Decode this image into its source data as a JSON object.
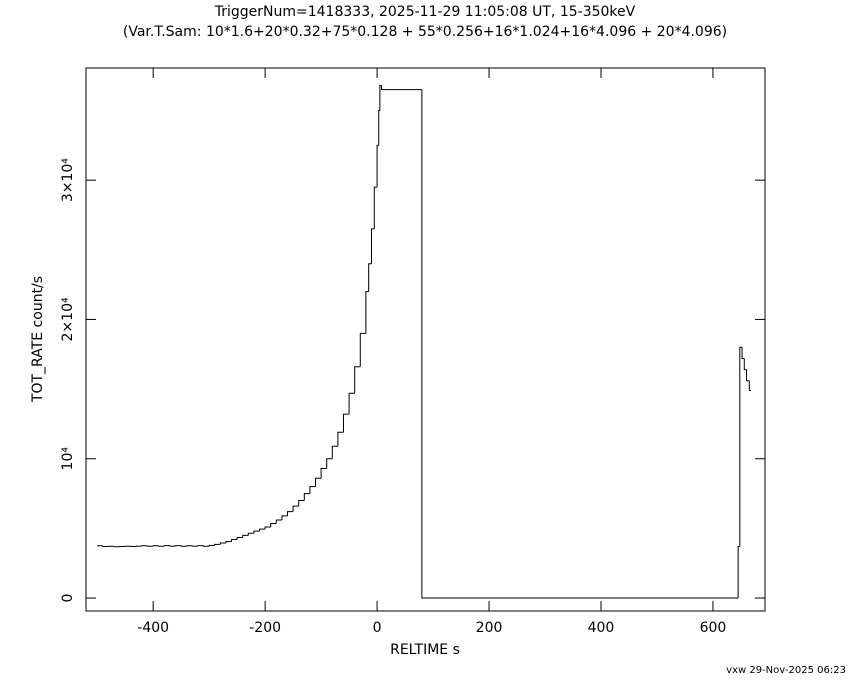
{
  "chart_data": {
    "type": "step",
    "title": "TriggerNum=1418333, 2025-11-29 11:05:08 UT, 15-350keV",
    "subtitle": "(Var.T.Sam: 10*1.6+20*0.32+75*0.128  +  55*0.256+16*1.024+16*4.096  +  20*4.096)",
    "xlabel": "RELTIME  s",
    "ylabel": "TOT_RATE  count/s",
    "footer": "vxw 29-Nov-2025 06:23",
    "color": "#000000",
    "xlim": [
      -520,
      693
    ],
    "ylim": [
      -930,
      38050
    ],
    "xticks": [
      -400,
      -200,
      0,
      200,
      400,
      600
    ],
    "yticks": [
      0,
      {
        "value": 10000,
        "label": "10⁴"
      },
      {
        "value": 20000,
        "label": "2×10⁴"
      },
      {
        "value": 30000,
        "label": "3×10⁴"
      }
    ],
    "x": [
      -500,
      -490,
      -480,
      -470,
      -460,
      -450,
      -440,
      -430,
      -420,
      -410,
      -400,
      -390,
      -380,
      -370,
      -360,
      -350,
      -340,
      -330,
      -320,
      -310,
      -300,
      -290,
      -280,
      -270,
      -260,
      -250,
      -240,
      -230,
      -220,
      -210,
      -200,
      -190,
      -180,
      -170,
      -160,
      -150,
      -140,
      -130,
      -120,
      -110,
      -100,
      -90,
      -80,
      -70,
      -60,
      -50,
      -40,
      -30,
      -20,
      -15,
      -10,
      -5,
      0,
      3,
      5,
      8,
      80,
      645,
      648,
      652,
      656,
      660,
      665,
      668
    ],
    "values": [
      3750,
      3700,
      3720,
      3680,
      3700,
      3720,
      3700,
      3730,
      3750,
      3720,
      3750,
      3720,
      3760,
      3730,
      3760,
      3720,
      3750,
      3730,
      3760,
      3720,
      3780,
      3850,
      3950,
      4050,
      4200,
      4350,
      4500,
      4650,
      4800,
      4950,
      5100,
      5350,
      5600,
      5900,
      6200,
      6600,
      7000,
      7500,
      8000,
      8600,
      9300,
      10000,
      10900,
      11900,
      13200,
      14700,
      16600,
      19000,
      22000,
      24000,
      26500,
      29500,
      32500,
      35000,
      36800,
      36500,
      0,
      3700,
      18000,
      17200,
      16400,
      15600,
      14900,
      14900
    ]
  }
}
